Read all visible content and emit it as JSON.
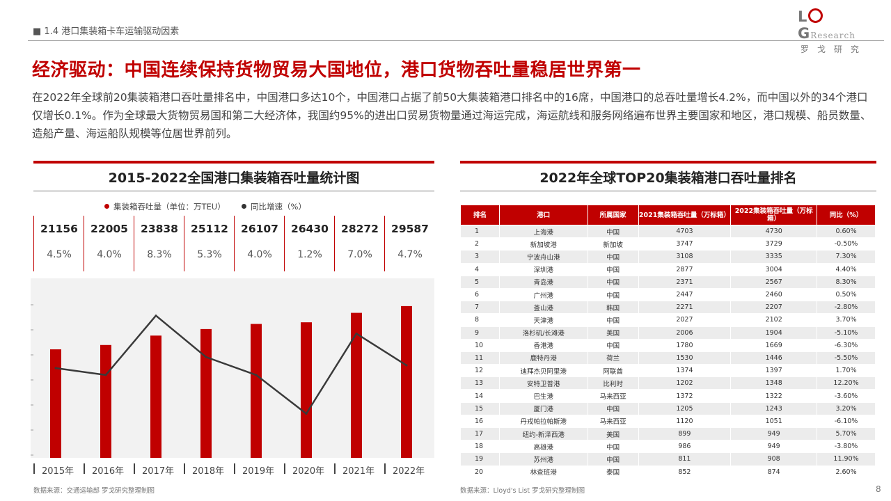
{
  "header": {
    "section_label": "■ 1.4 港口集装箱卡车运输驱动因素",
    "logo": {
      "letters_1": "L",
      "letters_2": "G",
      "research": "Research",
      "cn": "罗戈研究"
    }
  },
  "title": "经济驱动：中国连续保持货物贸易大国地位，港口货物吞吐量稳居世界第一",
  "intro": "在2022年全球前20集装箱港口吞吐量排名中，中国港口多达10个，中国港口占据了前50大集装箱港口排名中的16席，中国港口的总吞吐量增长4.2%，而中国以外的34个港口仅增长0.1%。作为全球最大货物贸易国和第二大经济体，我国约95%的进出口贸易货物量通过海运完成，海运航线和服务网络遍布世界主要国家和地区，港口规模、船员数量、造船产量、海运船队规模等位居世界前列。",
  "left_panel": {
    "title": "2015-2022全国港口集装箱吞吐量统计图",
    "legend": {
      "bar": "集装箱吞吐量（单位：万TEU）",
      "line": "同比增速（%）"
    },
    "source": "数据来源：交通运输部  罗戈研究整理制图"
  },
  "chart_data": {
    "type": "bar",
    "categories": [
      "2015年",
      "2016年",
      "2017年",
      "2018年",
      "2019年",
      "2020年",
      "2021年",
      "2022年"
    ],
    "series": [
      {
        "name": "集装箱吞吐量（单位：万TEU）",
        "type": "bar",
        "color": "#c00000",
        "values": [
          21156,
          22005,
          23838,
          25112,
          26107,
          26430,
          28272,
          29587
        ],
        "labels": [
          "21156",
          "22005",
          "23838",
          "25112",
          "26107",
          "26430",
          "28272",
          "29587"
        ]
      },
      {
        "name": "同比增速（%）",
        "type": "line",
        "color": "#3a3a3a",
        "values": [
          4.5,
          4.0,
          8.3,
          5.3,
          4.0,
          1.2,
          7.0,
          4.7
        ],
        "labels": [
          "4.5%",
          "4.0%",
          "8.3%",
          "5.3%",
          "4.0%",
          "1.2%",
          "7.0%",
          "4.7%"
        ]
      }
    ],
    "bar_axis_range": [
      0,
      35000
    ],
    "line_axis_range": [
      -2,
      11
    ],
    "legend_position": "top",
    "grid": false
  },
  "right_panel": {
    "title": "2022年全球TOP20集装箱港口吞吐量排名",
    "columns": [
      "排名",
      "港口",
      "所属国家",
      "2021集装箱吞吐量（万标箱）",
      "2022集装箱吞吐量（万标箱）",
      "同比（%）"
    ],
    "rows": [
      [
        "1",
        "上海港",
        "中国",
        "4703",
        "4730",
        "0.60%"
      ],
      [
        "2",
        "新加坡港",
        "新加坡",
        "3747",
        "3729",
        "-0.50%"
      ],
      [
        "3",
        "宁波舟山港",
        "中国",
        "3108",
        "3335",
        "7.30%"
      ],
      [
        "4",
        "深圳港",
        "中国",
        "2877",
        "3004",
        "4.40%"
      ],
      [
        "5",
        "青岛港",
        "中国",
        "2371",
        "2567",
        "8.30%"
      ],
      [
        "6",
        "广州港",
        "中国",
        "2447",
        "2460",
        "0.50%"
      ],
      [
        "7",
        "釜山港",
        "韩国",
        "2271",
        "2207",
        "-2.80%"
      ],
      [
        "8",
        "天津港",
        "中国",
        "2027",
        "2102",
        "3.70%"
      ],
      [
        "9",
        "洛杉矶/长滩港",
        "美国",
        "2006",
        "1904",
        "-5.10%"
      ],
      [
        "10",
        "香港港",
        "中国",
        "1780",
        "1669",
        "-6.30%"
      ],
      [
        "11",
        "鹿特丹港",
        "荷兰",
        "1530",
        "1446",
        "-5.50%"
      ],
      [
        "12",
        "迪拜杰贝阿里港",
        "阿联酋",
        "1374",
        "1397",
        "1.70%"
      ],
      [
        "13",
        "安特卫普港",
        "比利时",
        "1202",
        "1348",
        "12.20%"
      ],
      [
        "14",
        "巴生港",
        "马来西亚",
        "1372",
        "1322",
        "-3.60%"
      ],
      [
        "15",
        "厦门港",
        "中国",
        "1205",
        "1243",
        "3.20%"
      ],
      [
        "16",
        "丹戎帕拉帕斯港",
        "马来西亚",
        "1120",
        "1051",
        "-6.10%"
      ],
      [
        "17",
        "纽约-新泽西港",
        "美国",
        "899",
        "949",
        "5.70%"
      ],
      [
        "18",
        "高雄港",
        "中国",
        "986",
        "949",
        "-3.80%"
      ],
      [
        "19",
        "苏州港",
        "中国",
        "811",
        "908",
        "11.90%"
      ],
      [
        "20",
        "林查班港",
        "泰国",
        "852",
        "874",
        "2.60%"
      ]
    ],
    "source": "数据来源：Lloyd's List  罗戈研究整理制图"
  },
  "page_number": "8"
}
